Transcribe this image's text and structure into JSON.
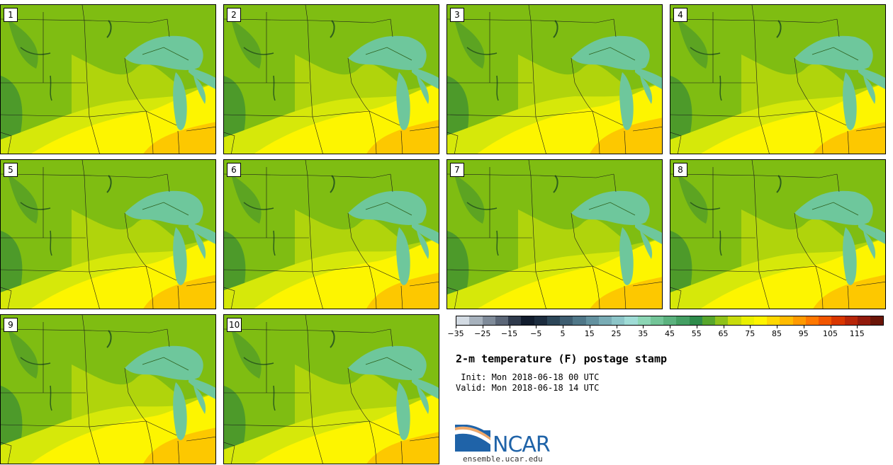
{
  "members": [
    {
      "label": "1"
    },
    {
      "label": "2"
    },
    {
      "label": "3"
    },
    {
      "label": "4"
    },
    {
      "label": "5"
    },
    {
      "label": "6"
    },
    {
      "label": "7"
    },
    {
      "label": "8"
    },
    {
      "label": "9"
    },
    {
      "label": "10"
    }
  ],
  "colorbar": {
    "colors": [
      "#d3dbe3",
      "#a7b2bd",
      "#7f8b99",
      "#5b6677",
      "#2f3a4c",
      "#111c2d",
      "#1c2c3e",
      "#2c4658",
      "#3e5d70",
      "#4f7788",
      "#63919f",
      "#79acb5",
      "#8cc5c8",
      "#9fdcd6",
      "#8cd6b5",
      "#73c598",
      "#5bb27e",
      "#449f63",
      "#2e8b4b",
      "#57a62c",
      "#8fc21a",
      "#c8dc0c",
      "#eaf000",
      "#fff400",
      "#ffd800",
      "#ffbb00",
      "#ff9a00",
      "#ff7800",
      "#f15500",
      "#d93600",
      "#b72508",
      "#921a0c",
      "#6a1508"
    ],
    "range": [
      -35,
      125
    ],
    "tick_values": [
      -35,
      -25,
      -15,
      -5,
      5,
      15,
      25,
      35,
      45,
      55,
      65,
      75,
      85,
      95,
      105,
      115
    ],
    "tick_labels": [
      "−35",
      "−25",
      "−15",
      "−5",
      "5",
      "15",
      "25",
      "35",
      "45",
      "55",
      "65",
      "75",
      "85",
      "95",
      "105",
      "115"
    ]
  },
  "title": "2-m temperature (F) postage stamp",
  "init": " Init: Mon 2018-06-18 00 UTC",
  "valid": "Valid: Mon 2018-06-18 14 UTC",
  "logo_text": "NCAR",
  "url": "ensemble.ucar.edu",
  "map_colors": {
    "green_dark": "#4d9a2a",
    "green": "#7fbd12",
    "green_light": "#b0d40c",
    "yellow_green": "#d6e80a",
    "yellow": "#fdf500",
    "orange": "#fdc800",
    "lake": "#6ec79c"
  }
}
